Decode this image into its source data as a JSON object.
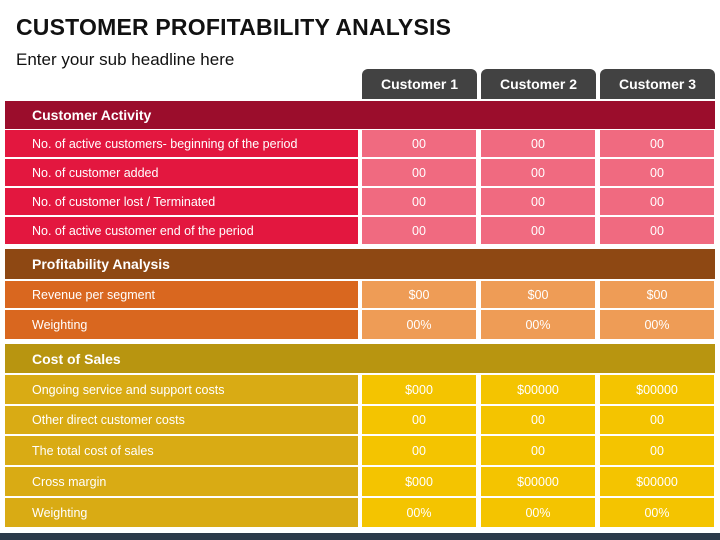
{
  "title": "CUSTOMER PROFITABILITY ANALYSIS",
  "subtitle": "Enter your sub headline here",
  "columns": [
    "Customer 1",
    "Customer 2",
    "Customer 3"
  ],
  "colors": {
    "column_header": "#424242",
    "activity_header": "#9b0d2c",
    "activity_label": "#e3173f",
    "activity_value": "#f06a80",
    "profit_header": "#8e4813",
    "profit_label": "#d9671f",
    "profit_value": "#ee9c56",
    "cost_header": "#b89510",
    "cost_label": "#d9ab14",
    "cost_value": "#f4c400"
  },
  "sections": [
    {
      "title": "Customer Activity",
      "rows": [
        {
          "label": "No. of active customers- beginning of the period",
          "values": [
            "00",
            "00",
            "00"
          ]
        },
        {
          "label": "No. of customer added",
          "values": [
            "00",
            "00",
            "00"
          ]
        },
        {
          "label": "No. of customer lost / Terminated",
          "values": [
            "00",
            "00",
            "00"
          ]
        },
        {
          "label": "No. of active customer end of the period",
          "values": [
            "00",
            "00",
            "00"
          ]
        }
      ]
    },
    {
      "title": "Profitability Analysis",
      "rows": [
        {
          "label": "Revenue per segment",
          "values": [
            "$00",
            "$00",
            "$00"
          ]
        },
        {
          "label": "Weighting",
          "values": [
            "00%",
            "00%",
            "00%"
          ]
        }
      ]
    },
    {
      "title": "Cost of Sales",
      "rows": [
        {
          "label": "Ongoing service and support costs",
          "values": [
            "$000",
            "$00000",
            "$00000"
          ]
        },
        {
          "label": "Other direct customer costs",
          "values": [
            "00",
            "00",
            "00"
          ]
        },
        {
          "label": "The total cost of sales",
          "values": [
            "00",
            "00",
            "00"
          ]
        },
        {
          "label": "Cross margin",
          "values": [
            "$000",
            "$00000",
            "$00000"
          ]
        },
        {
          "label": "Weighting",
          "values": [
            "00%",
            "00%",
            "00%"
          ]
        }
      ]
    }
  ]
}
